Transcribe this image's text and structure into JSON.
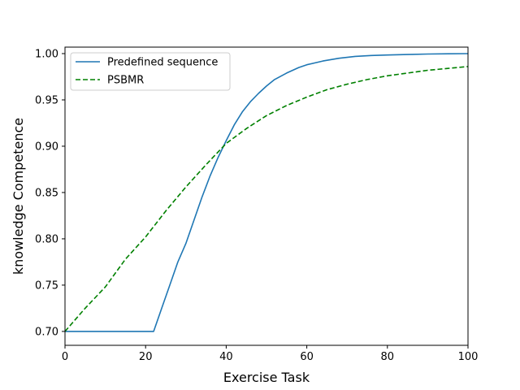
{
  "chart_data": {
    "type": "line",
    "title": "",
    "xlabel": "Exercise Task",
    "ylabel": "knowledge Competence",
    "xlim": [
      0,
      100
    ],
    "ylim": [
      0.685,
      1.007
    ],
    "xticks": [
      0,
      20,
      40,
      60,
      80,
      100
    ],
    "xtick_labels": [
      "0",
      "20",
      "40",
      "60",
      "80",
      "100"
    ],
    "yticks": [
      0.7,
      0.75,
      0.8,
      0.85,
      0.9,
      0.95,
      1.0
    ],
    "ytick_labels": [
      "0.70",
      "0.75",
      "0.80",
      "0.85",
      "0.90",
      "0.95",
      "1.00"
    ],
    "grid": false,
    "legend_position": "top-left",
    "series": [
      {
        "name": "Predefined sequence",
        "color": "#1f77b4",
        "style": "solid",
        "x": [
          0,
          22,
          24,
          26,
          28,
          30,
          32,
          34,
          36,
          38,
          40,
          42,
          44,
          46,
          48,
          50,
          52,
          55,
          58,
          60,
          64,
          68,
          72,
          76,
          80,
          85,
          90,
          95,
          100
        ],
        "y": [
          0.7,
          0.7,
          0.725,
          0.75,
          0.775,
          0.795,
          0.82,
          0.845,
          0.868,
          0.888,
          0.906,
          0.923,
          0.937,
          0.948,
          0.957,
          0.965,
          0.972,
          0.979,
          0.985,
          0.988,
          0.992,
          0.995,
          0.997,
          0.998,
          0.9985,
          0.999,
          0.9995,
          0.9998,
          1.0
        ]
      },
      {
        "name": "PSBMR",
        "color": "#008000",
        "style": "dashed",
        "x": [
          0,
          5,
          10,
          15,
          20,
          25,
          30,
          35,
          40,
          45,
          50,
          55,
          60,
          65,
          70,
          75,
          80,
          85,
          90,
          95,
          100
        ],
        "y": [
          0.7,
          0.725,
          0.748,
          0.778,
          0.802,
          0.83,
          0.856,
          0.88,
          0.903,
          0.919,
          0.933,
          0.944,
          0.953,
          0.961,
          0.967,
          0.972,
          0.976,
          0.979,
          0.982,
          0.984,
          0.986
        ]
      }
    ]
  }
}
